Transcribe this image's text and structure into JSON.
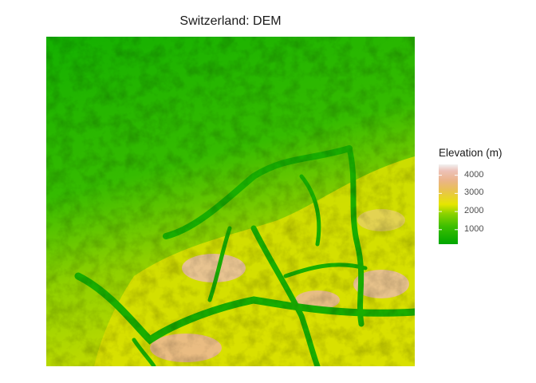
{
  "title": "Switzerland: DEM",
  "legend": {
    "title": "Elevation (m)",
    "ticks": [
      "1000",
      "2000",
      "3000",
      "4000"
    ],
    "tick_values": [
      1000,
      2000,
      3000,
      4000
    ],
    "range": [
      200,
      4600
    ],
    "colors": [
      "#00a600",
      "#3cbf00",
      "#8ad200",
      "#e6e600",
      "#e9c154",
      "#ebb48a",
      "#edc2b8",
      "#f2f2f2"
    ]
  }
}
